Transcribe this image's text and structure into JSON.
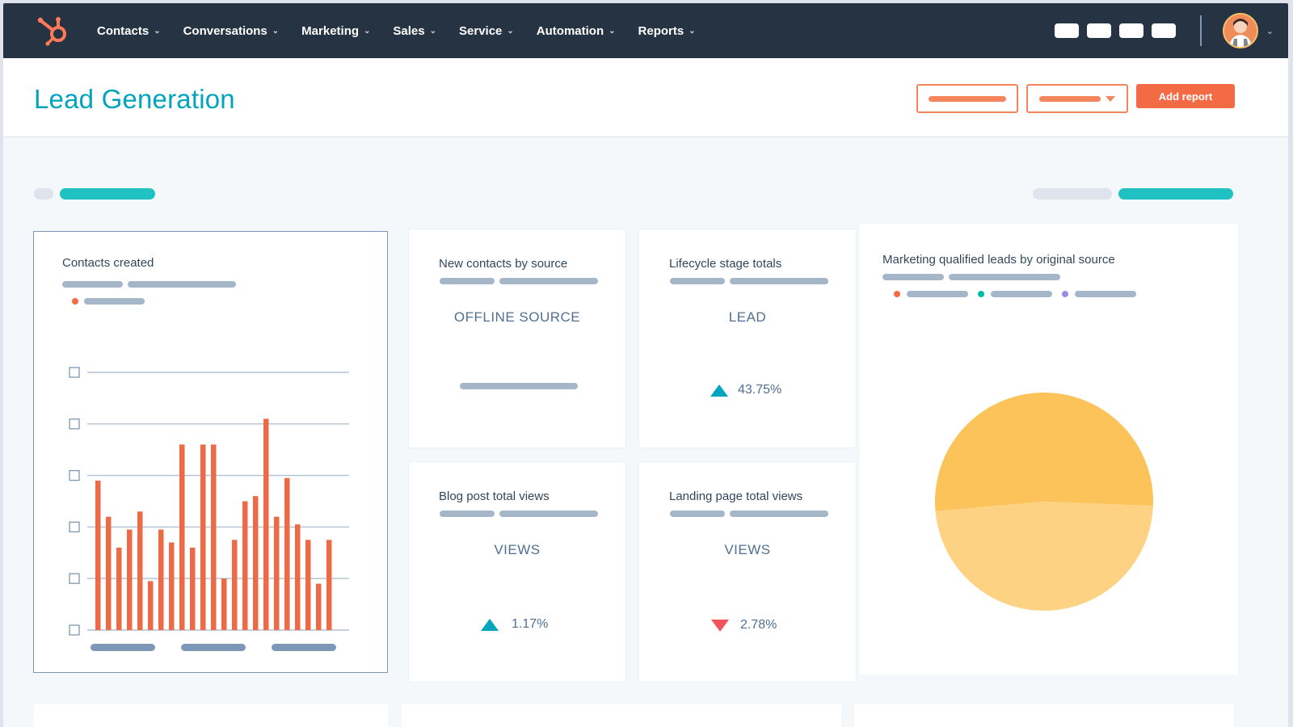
{
  "nav": {
    "items": [
      {
        "label": "Contacts"
      },
      {
        "label": "Conversations"
      },
      {
        "label": "Marketing"
      },
      {
        "label": "Sales"
      },
      {
        "label": "Service"
      },
      {
        "label": "Automation"
      },
      {
        "label": "Reports"
      }
    ],
    "logo_icon": "hubspot-sprocket-icon",
    "avatar_icon": "user-avatar-icon"
  },
  "header": {
    "title": "Lead Generation",
    "add_report_label": "Add report"
  },
  "colors": {
    "nav_bg": "#253342",
    "accent_teal": "#00a4bd",
    "accent_orange": "#f36b44",
    "bar_orange": "#ed6a47",
    "pie_dark": "#fbc35a",
    "pie_light": "#fdd383",
    "legend_orange": "#f36b44",
    "legend_teal": "#00bda5",
    "legend_purple": "#9a8ce0"
  },
  "cards": {
    "contacts_created": {
      "title": "Contacts created"
    },
    "new_contacts": {
      "title": "New contacts by source",
      "label": "OFFLINE SOURCE"
    },
    "lifecycle": {
      "title": "Lifecycle stage totals",
      "label": "LEAD",
      "delta": "43.75%",
      "direction": "up"
    },
    "blog_views": {
      "title": "Blog post total views",
      "label": "VIEWS",
      "delta": "1.17%",
      "direction": "up"
    },
    "landing_views": {
      "title": "Landing page total views",
      "label": "VIEWS",
      "delta": "2.78%",
      "direction": "down"
    },
    "mql_source": {
      "title": "Marketing qualified leads by original source"
    }
  },
  "chart_data": [
    {
      "type": "bar",
      "title": "Contacts created",
      "ylim": [
        0,
        5
      ],
      "grid": true,
      "values": [
        2.9,
        2.2,
        1.6,
        1.95,
        2.3,
        0.95,
        1.95,
        1.7,
        3.6,
        1.6,
        3.6,
        3.6,
        1.0,
        1.75,
        2.5,
        2.6,
        4.1,
        2.2,
        2.95,
        2.05,
        1.75,
        0.9,
        1.75
      ]
    },
    {
      "type": "pie",
      "title": "Marketing qualified leads by original source",
      "values": [
        52,
        48
      ]
    }
  ]
}
